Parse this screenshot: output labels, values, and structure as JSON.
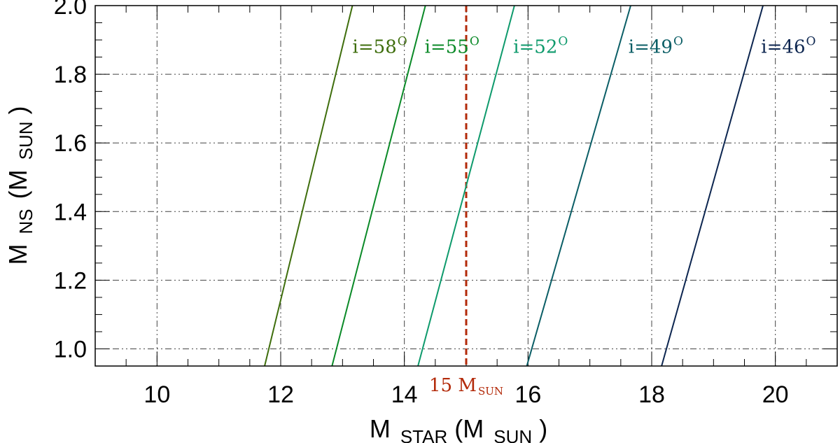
{
  "chart_data": {
    "type": "line",
    "xlabel": {
      "main": "M",
      "sub": "STAR",
      "unit_open": "(M",
      "unit_sub": "SUN",
      "unit_close": ")"
    },
    "ylabel": {
      "main": "M",
      "sub": "NS",
      "unit_open": "(M",
      "unit_sub": "SUN",
      "unit_close": ")"
    },
    "xlim": [
      9,
      21
    ],
    "ylim": [
      0.95,
      2.0
    ],
    "x_ticks": [
      10,
      12,
      14,
      16,
      18,
      20
    ],
    "x_tick_labels": [
      "10",
      "12",
      "14",
      "16",
      "18",
      "20"
    ],
    "y_ticks": [
      1.0,
      1.2,
      1.4,
      1.6,
      1.8,
      2.0
    ],
    "y_tick_labels": [
      "1.0",
      "1.2",
      "1.4",
      "1.6",
      "1.8",
      "2.0"
    ],
    "grid": true,
    "series": [
      {
        "name": "i=58",
        "sup": "O",
        "color": "#3f6e0d",
        "x": [
          11.74,
          13.16
        ],
        "y": [
          0.95,
          2.0
        ]
      },
      {
        "name": "i=55",
        "sup": "O",
        "color": "#0b8a28",
        "x": [
          12.83,
          14.34
        ],
        "y": [
          0.95,
          2.0
        ]
      },
      {
        "name": "i=52",
        "sup": "O",
        "color": "#0e9a6c",
        "x": [
          14.22,
          15.78
        ],
        "y": [
          0.95,
          2.0
        ]
      },
      {
        "name": "i=49",
        "sup": "O",
        "color": "#0b5e66",
        "x": [
          15.98,
          17.66
        ],
        "y": [
          0.95,
          2.0
        ]
      },
      {
        "name": "i=46",
        "sup": "O",
        "color": "#0d2650",
        "x": [
          18.16,
          19.8
        ],
        "y": [
          0.95,
          2.0
        ]
      }
    ],
    "annotations": [
      {
        "type": "vline",
        "x": 15,
        "color": "#b32a0a",
        "style": "dashed",
        "label": "15 M",
        "label_sub": "SUN"
      }
    ]
  }
}
